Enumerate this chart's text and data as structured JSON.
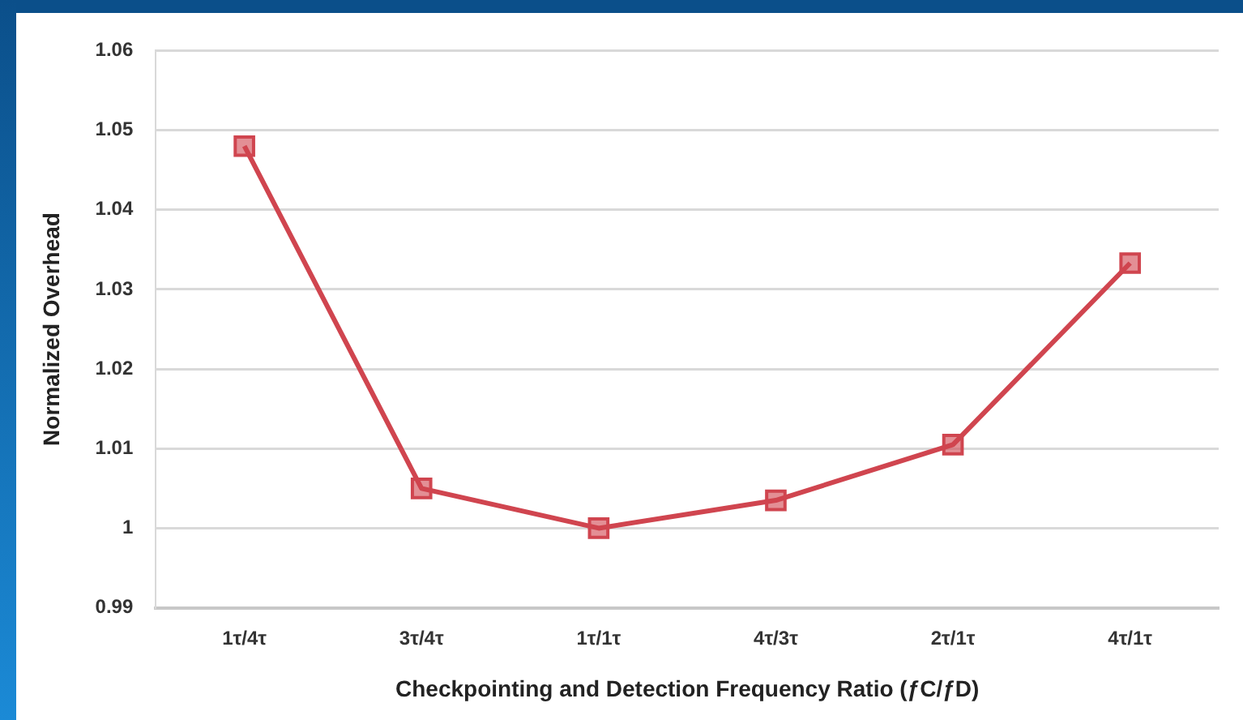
{
  "chart_data": {
    "type": "line",
    "xlabel": "Checkpointing and Detection Frequency Ratio (ƒC/ƒD)",
    "ylabel": "Normalized Overhead",
    "categories": [
      "1τ/4τ",
      "3τ/4τ",
      "1τ/1τ",
      "4τ/3τ",
      "2τ/1τ",
      "4τ/1τ"
    ],
    "series": [
      {
        "color": "#d0454f",
        "values": [
          1.048,
          1.005,
          1.0,
          1.0035,
          1.0105,
          1.0333
        ]
      }
    ],
    "ylim": [
      0.99,
      1.06
    ],
    "yticks": [
      0.99,
      1,
      1.01,
      1.02,
      1.03,
      1.04,
      1.05,
      1.06
    ],
    "grid": "y",
    "legend": false,
    "marker": "square",
    "line_style": "solid"
  }
}
